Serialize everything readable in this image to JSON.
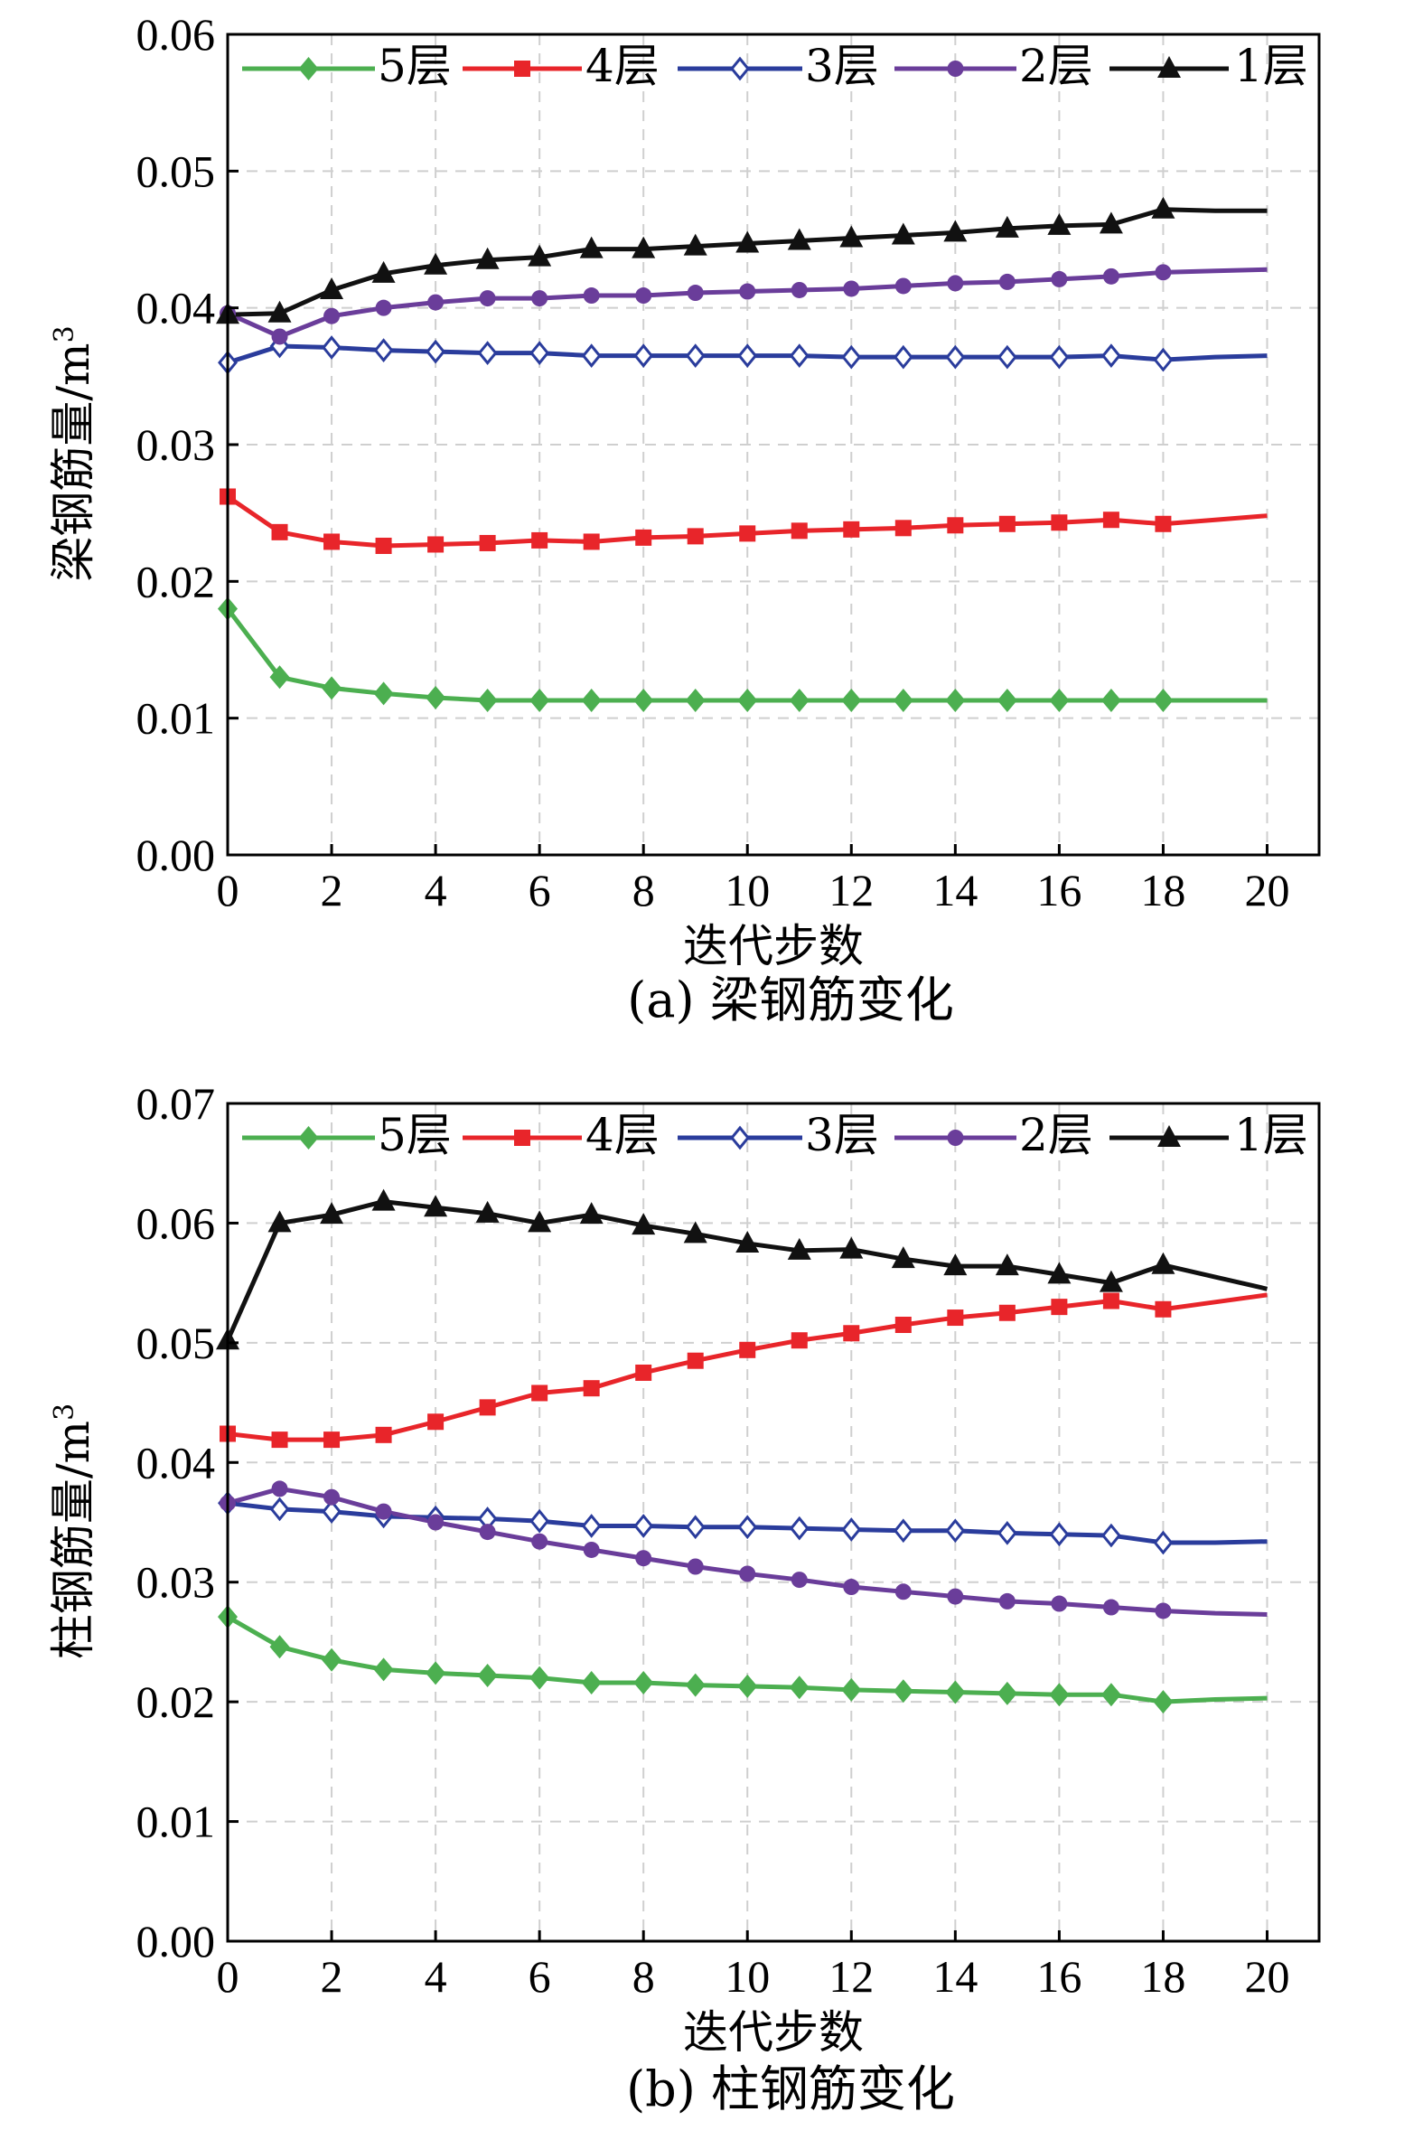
{
  "chart_data": [
    {
      "type": "line",
      "caption": "(a) 梁钢筋变化",
      "xlabel": "迭代步数",
      "ylabel": "梁钢筋量/m",
      "ylabel_sup": "3",
      "xlim": [
        0,
        21
      ],
      "ylim": [
        0,
        0.06
      ],
      "xticks": [
        0,
        2,
        4,
        6,
        8,
        10,
        12,
        14,
        16,
        18,
        20
      ],
      "yticks": [
        "0.00",
        "0.01",
        "0.02",
        "0.03",
        "0.04",
        "0.05",
        "0.06"
      ],
      "grid": true,
      "legend_position": "top",
      "x": [
        0,
        1,
        2,
        3,
        4,
        5,
        6,
        7,
        8,
        9,
        10,
        11,
        12,
        13,
        14,
        15,
        16,
        17,
        18,
        19,
        20
      ],
      "series": [
        {
          "name": "5层",
          "color": "#4caf50",
          "marker": "diamond",
          "values": [
            0.018,
            0.013,
            0.0122,
            0.0118,
            0.0115,
            0.0113,
            0.0113,
            0.0113,
            0.0113,
            0.0113,
            0.0113,
            0.0113,
            0.0113,
            0.0113,
            0.0113,
            0.0113,
            0.0113,
            0.0113,
            0.0113,
            0.0113,
            0.0113
          ]
        },
        {
          "name": "4层",
          "color": "#e8252a",
          "marker": "square",
          "values": [
            0.0262,
            0.0236,
            0.0229,
            0.0226,
            0.0227,
            0.0228,
            0.023,
            0.0229,
            0.0232,
            0.0233,
            0.0235,
            0.0237,
            0.0238,
            0.0239,
            0.0241,
            0.0242,
            0.0243,
            0.0245,
            0.0242,
            0.0245,
            0.0248
          ]
        },
        {
          "name": "3层",
          "color": "#2a3c9c",
          "marker": "open-diamond",
          "values": [
            0.036,
            0.0372,
            0.0371,
            0.0369,
            0.0368,
            0.0367,
            0.0367,
            0.0365,
            0.0365,
            0.0365,
            0.0365,
            0.0365,
            0.0364,
            0.0364,
            0.0364,
            0.0364,
            0.0364,
            0.0365,
            0.0362,
            0.0364,
            0.0365
          ]
        },
        {
          "name": "2层",
          "color": "#6a3d9a",
          "marker": "circle",
          "values": [
            0.0396,
            0.0379,
            0.0394,
            0.04,
            0.0404,
            0.0407,
            0.0407,
            0.0409,
            0.0409,
            0.0411,
            0.0412,
            0.0413,
            0.0414,
            0.0416,
            0.0418,
            0.0419,
            0.0421,
            0.0423,
            0.0426,
            0.0427,
            0.0428
          ]
        },
        {
          "name": "1层",
          "color": "#111111",
          "marker": "triangle",
          "values": [
            0.0395,
            0.0396,
            0.0413,
            0.0425,
            0.0431,
            0.0435,
            0.0437,
            0.0443,
            0.0443,
            0.0445,
            0.0447,
            0.0449,
            0.0451,
            0.0453,
            0.0455,
            0.0458,
            0.046,
            0.0461,
            0.0472,
            0.0471,
            0.0471
          ]
        }
      ]
    },
    {
      "type": "line",
      "caption": "(b) 柱钢筋变化",
      "xlabel": "迭代步数",
      "ylabel": "柱钢筋量/m",
      "ylabel_sup": "3",
      "xlim": [
        0,
        21
      ],
      "ylim": [
        0,
        0.07
      ],
      "xticks": [
        0,
        2,
        4,
        6,
        8,
        10,
        12,
        14,
        16,
        18,
        20
      ],
      "yticks": [
        "0.00",
        "0.01",
        "0.02",
        "0.03",
        "0.04",
        "0.05",
        "0.06",
        "0.07"
      ],
      "grid": true,
      "legend_position": "top",
      "x": [
        0,
        1,
        2,
        3,
        4,
        5,
        6,
        7,
        8,
        9,
        10,
        11,
        12,
        13,
        14,
        15,
        16,
        17,
        18,
        19,
        20
      ],
      "series": [
        {
          "name": "5层",
          "color": "#4caf50",
          "marker": "diamond",
          "values": [
            0.0271,
            0.0246,
            0.0235,
            0.0227,
            0.0224,
            0.0222,
            0.022,
            0.0216,
            0.0216,
            0.0214,
            0.0213,
            0.0212,
            0.021,
            0.0209,
            0.0208,
            0.0207,
            0.0206,
            0.0206,
            0.02,
            0.0202,
            0.0203
          ]
        },
        {
          "name": "4层",
          "color": "#e8252a",
          "marker": "square",
          "values": [
            0.0424,
            0.0419,
            0.0419,
            0.0423,
            0.0434,
            0.0446,
            0.0458,
            0.0462,
            0.0475,
            0.0485,
            0.0494,
            0.0502,
            0.0508,
            0.0515,
            0.0521,
            0.0525,
            0.053,
            0.0535,
            0.0528,
            0.0534,
            0.054
          ]
        },
        {
          "name": "3层",
          "color": "#2a3c9c",
          "marker": "open-diamond",
          "values": [
            0.0366,
            0.0361,
            0.0359,
            0.0355,
            0.0354,
            0.0353,
            0.0351,
            0.0347,
            0.0347,
            0.0346,
            0.0346,
            0.0345,
            0.0344,
            0.0343,
            0.0343,
            0.0341,
            0.034,
            0.0339,
            0.0333,
            0.0333,
            0.0334
          ]
        },
        {
          "name": "2层",
          "color": "#6a3d9a",
          "marker": "circle",
          "values": [
            0.0366,
            0.0378,
            0.0371,
            0.0359,
            0.035,
            0.0342,
            0.0334,
            0.0327,
            0.032,
            0.0313,
            0.0307,
            0.0302,
            0.0296,
            0.0292,
            0.0288,
            0.0284,
            0.0282,
            0.0279,
            0.0276,
            0.0274,
            0.0273
          ]
        },
        {
          "name": "1层",
          "color": "#111111",
          "marker": "triangle",
          "values": [
            0.0502,
            0.06,
            0.0607,
            0.0618,
            0.0613,
            0.0608,
            0.06,
            0.0607,
            0.0598,
            0.0591,
            0.0583,
            0.0577,
            0.0578,
            0.057,
            0.0564,
            0.0564,
            0.0557,
            0.055,
            0.0565,
            0.0555,
            0.0545
          ]
        }
      ]
    }
  ]
}
